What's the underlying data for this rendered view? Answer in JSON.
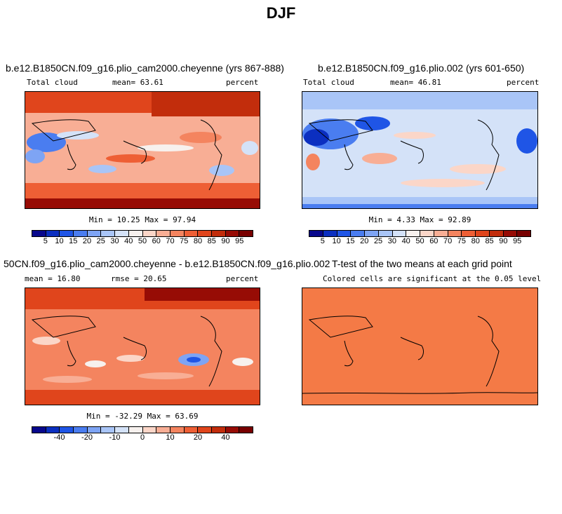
{
  "title": "DJF",
  "panels": {
    "p1": {
      "title": "b.e12.B1850CN.f09_g16.plio_cam2000.cheyenne (yrs 867-888)",
      "variable": "Total cloud",
      "mean_label": "mean=",
      "mean_value": "63.61",
      "units": "percent",
      "min_label": "Min =",
      "min_value": "10.25",
      "max_label": "Max =",
      "max_value": "97.94"
    },
    "p2": {
      "title": "b.e12.B1850CN.f09_g16.plio.002 (yrs 601-650)",
      "variable": "Total cloud",
      "mean_label": "mean=",
      "mean_value": "46.81",
      "units": "percent",
      "min_label": "Min =",
      "min_value": "4.33",
      "max_label": "Max =",
      "max_value": "92.89"
    },
    "p3": {
      "title": "50CN.f09_g16.plio_cam2000.cheyenne - b.e12.B1850CN.f09_g16.plio.002",
      "mean_label": "mean =",
      "mean_value": "16.80",
      "rmse_label": "rmse =",
      "rmse_value": "20.65",
      "units": "percent",
      "min_label": "Min =",
      "min_value": "-32.29",
      "max_label": "Max =",
      "max_value": "63.69"
    },
    "p4": {
      "title": "T-test of the two means at each grid point",
      "subtitle": "Colored cells are significant at the 0.05 level"
    }
  },
  "colorbars": {
    "absolute": {
      "colors": [
        "#08088c",
        "#0b2fc0",
        "#1f55e6",
        "#4a7df0",
        "#7ea4f4",
        "#a9c5f7",
        "#d4e2f8",
        "#f7f1ee",
        "#fbd6c8",
        "#f8ae95",
        "#f4845f",
        "#ee5f35",
        "#e0451c",
        "#c22d0c",
        "#970c05",
        "#780000"
      ],
      "labels": [
        "5",
        "10",
        "15",
        "20",
        "25",
        "30",
        "40",
        "50",
        "60",
        "70",
        "75",
        "80",
        "85",
        "90",
        "95"
      ]
    },
    "difference": {
      "colors": [
        "#08088c",
        "#0b2fc0",
        "#1f55e6",
        "#4a7df0",
        "#7ea4f4",
        "#a9c5f7",
        "#d4e2f8",
        "#f7f1ee",
        "#fbd6c8",
        "#f8ae95",
        "#f4845f",
        "#ee5f35",
        "#e0451c",
        "#c22d0c",
        "#970c05",
        "#780000"
      ],
      "labels": [
        "-40",
        "-20",
        "-10",
        "0",
        "10",
        "20",
        "40"
      ],
      "label_boundaries": [
        2,
        4,
        6,
        8,
        10,
        12,
        14
      ]
    }
  }
}
